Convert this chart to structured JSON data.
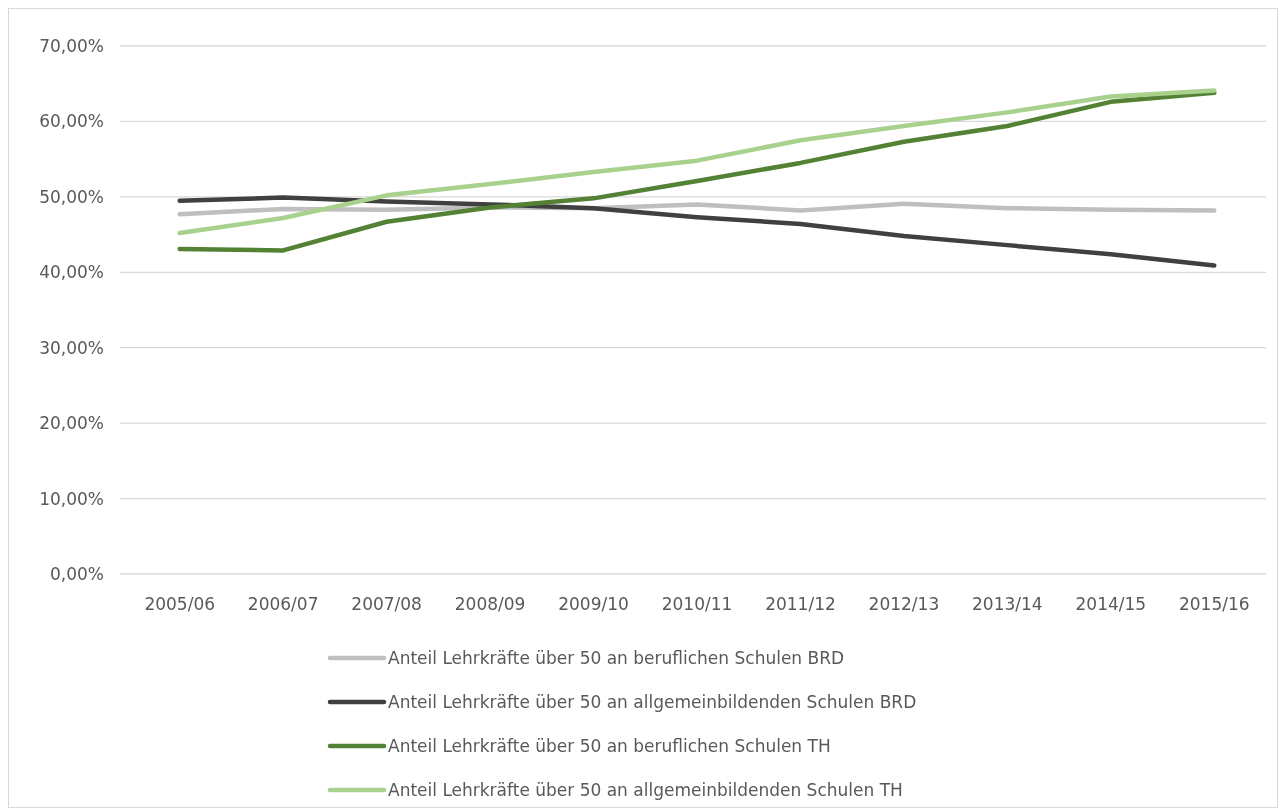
{
  "chart_data": {
    "type": "line",
    "categories": [
      "2005/06",
      "2006/07",
      "2007/08",
      "2008/09",
      "2009/10",
      "2010/11",
      "2011/12",
      "2012/13",
      "2013/14",
      "2014/15",
      "2015/16"
    ],
    "series": [
      {
        "name": "Anteil Lehrkräfte über 50 an beruflichen Schulen BRD",
        "color": "#bfbfbf",
        "values": [
          47.7,
          48.4,
          48.3,
          48.6,
          48.5,
          49.0,
          48.2,
          49.1,
          48.5,
          48.3,
          48.2
        ]
      },
      {
        "name": "Anteil Lehrkräfte über 50 an allgemeinbildenden Schulen BRD",
        "color": "#404040",
        "values": [
          49.5,
          49.9,
          49.4,
          49.0,
          48.5,
          47.3,
          46.4,
          44.8,
          43.6,
          42.4,
          40.9
        ]
      },
      {
        "name": "Anteil Lehrkräfte über 50 an beruflichen Schulen TH",
        "color": "#548235",
        "values": [
          43.1,
          42.9,
          46.7,
          48.6,
          49.8,
          52.1,
          54.5,
          57.3,
          59.4,
          62.6,
          63.8
        ]
      },
      {
        "name": "Anteil Lehrkräfte über 50 an allgemeinbildenden Schulen TH",
        "color": "#a9d18e",
        "values": [
          45.2,
          47.2,
          50.2,
          51.7,
          53.3,
          54.8,
          57.5,
          59.4,
          61.2,
          63.3,
          64.1
        ]
      }
    ],
    "ylim": [
      0,
      70
    ],
    "yticks": [
      {
        "value": 0,
        "label": "0,00%"
      },
      {
        "value": 10,
        "label": "10,00%"
      },
      {
        "value": 20,
        "label": "20,00%"
      },
      {
        "value": 30,
        "label": "30,00%"
      },
      {
        "value": 40,
        "label": "40,00%"
      },
      {
        "value": 50,
        "label": "50,00%"
      },
      {
        "value": 60,
        "label": "60,00%"
      },
      {
        "value": 70,
        "label": "70,00%"
      }
    ],
    "grid": "y",
    "legend": "bottom",
    "marker": "none",
    "line_style": "solid"
  }
}
